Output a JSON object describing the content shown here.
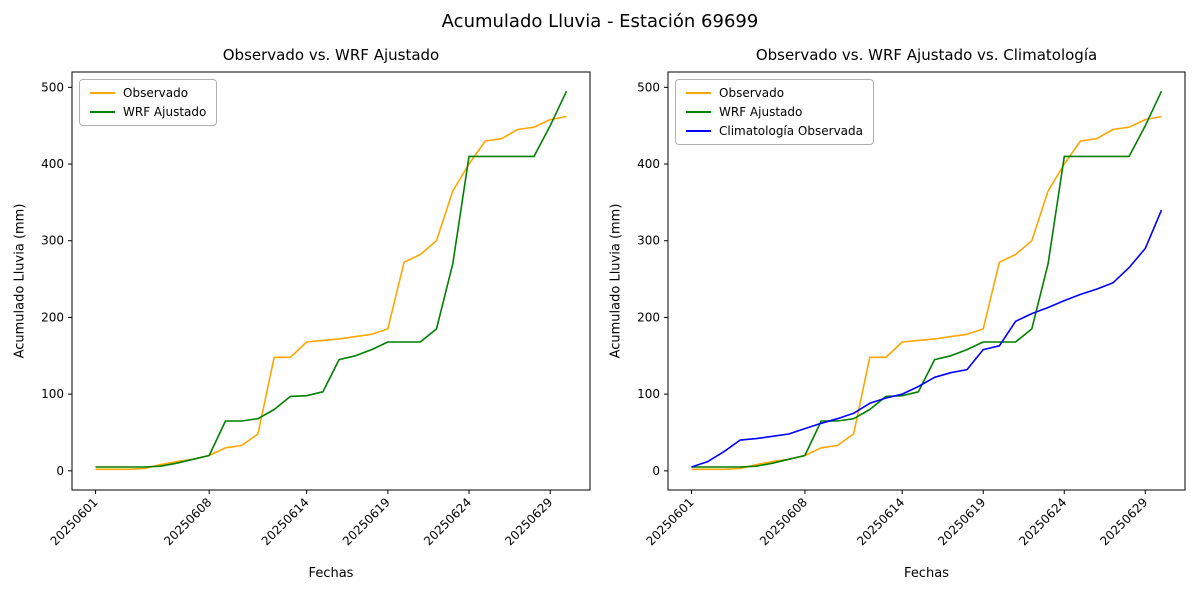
{
  "figure": {
    "title": "Acumulado Lluvia - Estación 69699"
  },
  "chart_data": "see charts",
  "charts": [
    {
      "type": "line",
      "title": "Observado vs. WRF Ajustado",
      "xlabel": "Fechas",
      "ylabel": "Acumulado Lluvia (mm)",
      "legend_position": "upper left",
      "grid": false,
      "ylim": [
        -25,
        520
      ],
      "yticks": [
        0,
        100,
        200,
        300,
        400,
        500
      ],
      "xtick_indices": [
        0,
        7,
        13,
        18,
        23,
        28
      ],
      "xtick_labels": [
        "20250601",
        "20250608",
        "20250614",
        "20250619",
        "20250624",
        "20250629"
      ],
      "x": [
        "20250601",
        "20250602",
        "20250603",
        "20250604",
        "20250605",
        "20250606",
        "20250607",
        "20250608",
        "20250609",
        "20250610",
        "20250611",
        "20250612",
        "20250613",
        "20250614",
        "20250615",
        "20250616",
        "20250617",
        "20250618",
        "20250619",
        "20250620",
        "20250621",
        "20250622",
        "20250623",
        "20250624",
        "20250625",
        "20250626",
        "20250627",
        "20250628",
        "20250629",
        "20250630"
      ],
      "series": [
        {
          "name": "Observado",
          "color": "#ffa500",
          "values": [
            2,
            2,
            2,
            3,
            8,
            12,
            15,
            20,
            30,
            33,
            48,
            148,
            148,
            168,
            170,
            172,
            175,
            178,
            185,
            272,
            282,
            300,
            365,
            400,
            430,
            433,
            445,
            448,
            458,
            462
          ]
        },
        {
          "name": "WRF Ajustado",
          "color": "#008000",
          "values": [
            5,
            5,
            5,
            5,
            6,
            10,
            15,
            20,
            65,
            65,
            68,
            80,
            97,
            98,
            103,
            145,
            150,
            158,
            168,
            168,
            168,
            185,
            270,
            410,
            410,
            410,
            410,
            410,
            450,
            495
          ]
        }
      ]
    },
    {
      "type": "line",
      "title": "Observado vs. WRF Ajustado vs. Climatología",
      "xlabel": "Fechas",
      "ylabel": "Acumulado Lluvia (mm)",
      "legend_position": "upper left",
      "grid": false,
      "ylim": [
        -25,
        520
      ],
      "yticks": [
        0,
        100,
        200,
        300,
        400,
        500
      ],
      "xtick_indices": [
        0,
        7,
        13,
        18,
        23,
        28
      ],
      "xtick_labels": [
        "20250601",
        "20250608",
        "20250614",
        "20250619",
        "20250624",
        "20250629"
      ],
      "x": [
        "20250601",
        "20250602",
        "20250603",
        "20250604",
        "20250605",
        "20250606",
        "20250607",
        "20250608",
        "20250609",
        "20250610",
        "20250611",
        "20250612",
        "20250613",
        "20250614",
        "20250615",
        "20250616",
        "20250617",
        "20250618",
        "20250619",
        "20250620",
        "20250621",
        "20250622",
        "20250623",
        "20250624",
        "20250625",
        "20250626",
        "20250627",
        "20250628",
        "20250629",
        "20250630"
      ],
      "series": [
        {
          "name": "Observado",
          "color": "#ffa500",
          "values": [
            2,
            2,
            2,
            3,
            8,
            12,
            15,
            20,
            30,
            33,
            48,
            148,
            148,
            168,
            170,
            172,
            175,
            178,
            185,
            272,
            282,
            300,
            365,
            400,
            430,
            433,
            445,
            448,
            458,
            462
          ]
        },
        {
          "name": "WRF Ajustado",
          "color": "#008000",
          "values": [
            5,
            5,
            5,
            5,
            6,
            10,
            15,
            20,
            65,
            65,
            68,
            80,
            97,
            98,
            103,
            145,
            150,
            158,
            168,
            168,
            168,
            185,
            270,
            410,
            410,
            410,
            410,
            410,
            450,
            495
          ]
        },
        {
          "name": "Climatología Observada",
          "color": "#0000ff",
          "values": [
            5,
            12,
            25,
            40,
            42,
            45,
            48,
            55,
            62,
            68,
            75,
            88,
            95,
            100,
            110,
            122,
            128,
            132,
            158,
            163,
            195,
            205,
            213,
            222,
            230,
            237,
            245,
            265,
            290,
            340
          ]
        }
      ]
    }
  ]
}
